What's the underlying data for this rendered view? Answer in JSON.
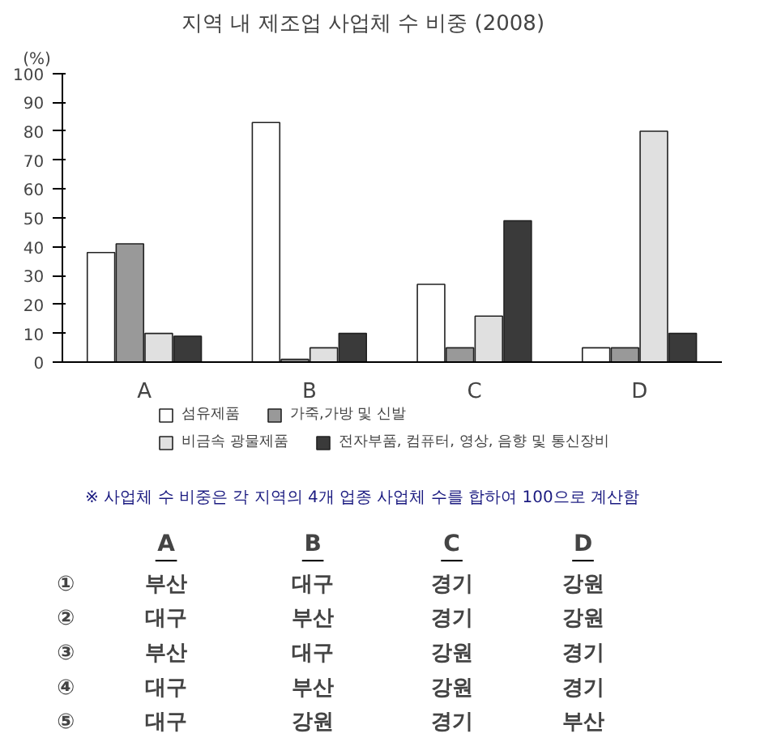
{
  "chart_data": {
    "type": "bar",
    "title": "지역 내 제조업 사업체 수 비중 (2008)",
    "ylabel": "(%)",
    "categories": [
      "A",
      "B",
      "C",
      "D"
    ],
    "series": [
      {
        "name": "섬유제품",
        "color": "#ffffff",
        "values": [
          38,
          83,
          27,
          5
        ]
      },
      {
        "name": "가죽,가방 및 신발",
        "color": "#999999",
        "values": [
          41,
          1,
          5,
          5
        ]
      },
      {
        "name": "비금속 광물제품",
        "color": "#e0e0e0",
        "values": [
          10,
          5,
          16,
          80
        ]
      },
      {
        "name": "전자부품, 컴퓨터, 영상, 음향 및 통신장비",
        "color": "#3a3a3a",
        "values": [
          9,
          10,
          49,
          10
        ]
      }
    ],
    "ylim": [
      0,
      100
    ],
    "yticks": [
      0,
      10,
      20,
      30,
      40,
      50,
      60,
      70,
      80,
      90,
      100
    ],
    "grid": false,
    "legend": "bottom",
    "annotations": [
      "※ 사업체 수 비중은 각 지역의 4개 업종 사업체 수를 합하여 100으로 계산함",
      "A",
      "B",
      "C",
      "D",
      "①",
      "부산",
      "대구",
      "경기",
      "강원",
      "②",
      "대구",
      "부산",
      "경기",
      "강원",
      "③",
      "부산",
      "대구",
      "강원",
      "경기",
      "④",
      "대구",
      "부산",
      "강원",
      "경기",
      "⑤",
      "대구",
      "강원",
      "경기",
      "부산"
    ]
  }
}
